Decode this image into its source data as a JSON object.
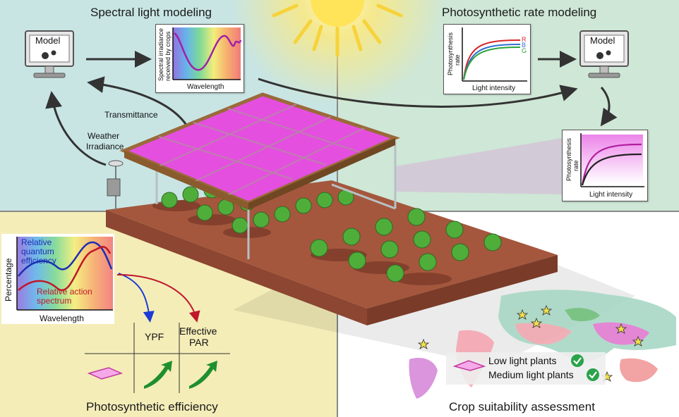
{
  "titles": {
    "spectral": "Spectral light modeling",
    "photo_rate": "Photosynthetic rate modeling",
    "efficiency": "Photosynthetic efficiency",
    "suitability": "Crop suitability assessment"
  },
  "model_left": {
    "label": "Model"
  },
  "model_right": {
    "label": "Model"
  },
  "labels": {
    "transmittance": "Transmittance",
    "weather": "Weather",
    "irradiance": "Irradiance"
  },
  "spectral_chart": {
    "ylabel_line1": "Spectral irradiance",
    "ylabel_line2": "received by crops",
    "xlabel": "Wavelength"
  },
  "rate_chart": {
    "ylabel_line1": "Photosynthesis",
    "ylabel_line2": "rate",
    "xlabel": "Light intensity",
    "series": [
      {
        "name": "R",
        "color": "#d7262b"
      },
      {
        "name": "B",
        "color": "#2e6fd6"
      },
      {
        "name": "G",
        "color": "#2aa33b"
      }
    ]
  },
  "response_chart": {
    "ylabel_line1": "Photosynthesis",
    "ylabel_line2": "rate",
    "xlabel": "Light intensity"
  },
  "efficiency_chart": {
    "ylabel": "Percentage",
    "xlabel": "Wavelength",
    "series_quantum_line1": "Relative",
    "series_quantum_line2": "quantum",
    "series_quantum_line3": "efficiency",
    "series_action_line1": "Relative action",
    "series_action_line2": "spectrum",
    "quantum_color": "#1b2fb3",
    "action_color": "#c0172a"
  },
  "efficiency_table": {
    "col1": "YPF",
    "col2_line1": "Effective",
    "col2_line2": "PAR"
  },
  "legend": {
    "low": "Low light plants",
    "medium": "Medium light plants"
  },
  "colors": {
    "sky": "#c7e3dc",
    "sand": "#f3ecb6",
    "white": "#ffffff",
    "film": "#e44fe0",
    "soil": "#a4573d",
    "check": "#2ba34b"
  }
}
